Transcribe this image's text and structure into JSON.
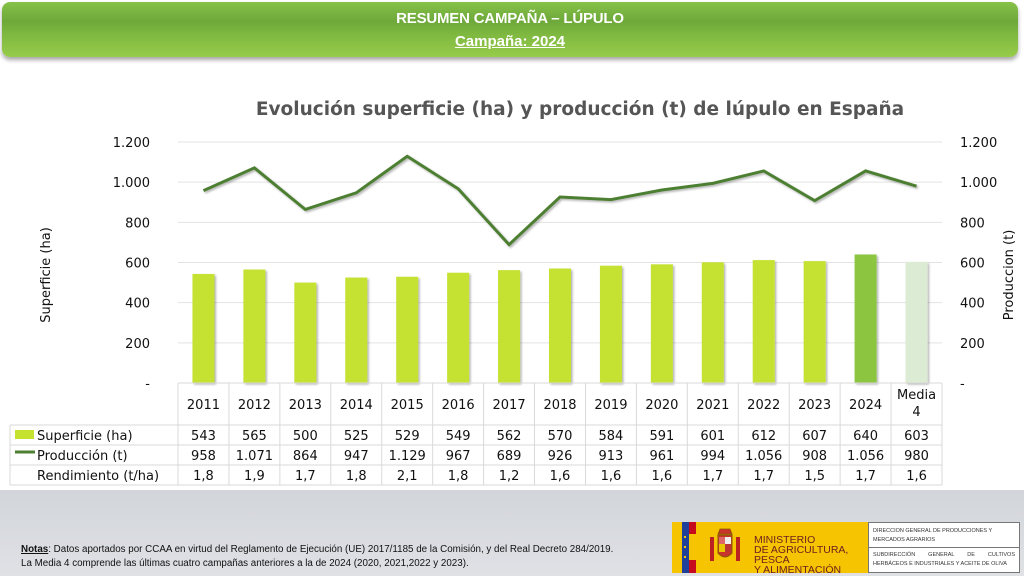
{
  "banner": {
    "title": "RESUMEN CAMPAÑA – LÚPULO",
    "subtitle": "Campaña: 2024"
  },
  "chart_data": {
    "type": "bar+line",
    "title": "Evolución superficie (ha) y producción (t) de lúpulo en España",
    "ylabel_left": "Superficie (ha)",
    "ylabel_right": "Produccion (t)",
    "ylim": [
      0,
      1200
    ],
    "yticks": [
      0,
      200,
      400,
      600,
      800,
      1000,
      1200
    ],
    "ytick_labels": [
      "-",
      "200",
      "400",
      "600",
      "800",
      "1.000",
      "1.200"
    ],
    "grid": true,
    "categories": [
      "2011",
      "2012",
      "2013",
      "2014",
      "2015",
      "2016",
      "2017",
      "2018",
      "2019",
      "2020",
      "2021",
      "2022",
      "2023",
      "2024",
      "Media 4"
    ],
    "series": [
      {
        "name": "Superficie (ha)",
        "type": "bar",
        "axis": "left",
        "color": "#c5e231",
        "highlight_colors": {
          "2024": "#8cc63f",
          "Media 4": "#dcebd3"
        },
        "values": [
          543,
          565,
          500,
          525,
          529,
          549,
          562,
          570,
          584,
          591,
          601,
          612,
          607,
          640,
          603
        ],
        "labels": [
          "543",
          "565",
          "500",
          "525",
          "529",
          "549",
          "562",
          "570",
          "584",
          "591",
          "601",
          "612",
          "607",
          "640",
          "603"
        ]
      },
      {
        "name": "Producción (t)",
        "type": "line",
        "axis": "right",
        "color": "#4e7f32",
        "values": [
          958,
          1071,
          864,
          947,
          1129,
          967,
          689,
          926,
          913,
          961,
          994,
          1056,
          908,
          1056,
          980
        ],
        "labels": [
          "958",
          "1.071",
          "864",
          "947",
          "1.129",
          "967",
          "689",
          "926",
          "913",
          "961",
          "994",
          "1.056",
          "908",
          "1.056",
          "980"
        ]
      },
      {
        "name": "Rendimiento (t/ha)",
        "type": "table",
        "values": [
          1.8,
          1.9,
          1.7,
          1.8,
          2.1,
          1.8,
          1.2,
          1.6,
          1.6,
          1.6,
          1.7,
          1.7,
          1.5,
          1.7,
          1.6
        ],
        "labels": [
          "1,8",
          "1,9",
          "1,7",
          "1,8",
          "2,1",
          "1,8",
          "1,2",
          "1,6",
          "1,6",
          "1,6",
          "1,7",
          "1,7",
          "1,5",
          "1,7",
          "1,6"
        ]
      }
    ],
    "category_display": [
      [
        "2011"
      ],
      [
        "2012"
      ],
      [
        "2013"
      ],
      [
        "2014"
      ],
      [
        "2015"
      ],
      [
        "2016"
      ],
      [
        "2017"
      ],
      [
        "2018"
      ],
      [
        "2019"
      ],
      [
        "2020"
      ],
      [
        "2021"
      ],
      [
        "2022"
      ],
      [
        "2023"
      ],
      [
        "2024"
      ],
      [
        "Media",
        "4"
      ]
    ]
  },
  "footer": {
    "notes_label": "Notas",
    "notes_line1": ": Datos aportados por CCAA en virtud del Reglamento de Ejecución (UE) 2017/1185 de la Comisión, y del Real Decreto 284/2019.",
    "notes_line2": "La Media 4 comprende las últimas cuatro campañas anteriores a la de 2024 (2020, 2021,2022 y 2023).",
    "ministry_line1": "MINISTERIO",
    "ministry_line2": "DE AGRICULTURA, PESCA",
    "ministry_line3": "Y ALIMENTACIÓN",
    "dg_line": "DIRECCION GENERAL DE PRODUCCIONES Y MERCADOS AGRARIOS",
    "sdg_line": "SUBDIRECCIÓN GENERAL DE CULTIVOS HERBÁCEOS E INDUSTRIALES Y ACEITE DE OLIVA"
  }
}
